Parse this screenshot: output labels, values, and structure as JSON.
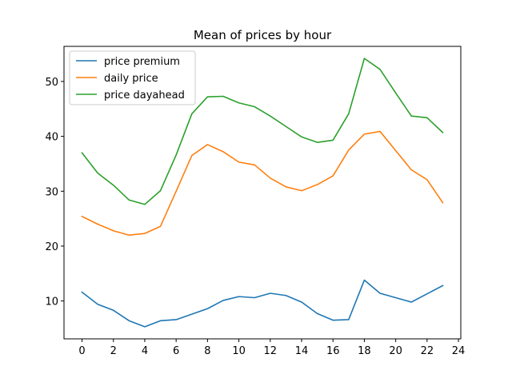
{
  "chart_data": {
    "type": "line",
    "title": "Mean of prices by hour",
    "xlabel": "",
    "ylabel": "",
    "x": [
      0,
      1,
      2,
      3,
      4,
      5,
      6,
      7,
      8,
      9,
      10,
      11,
      12,
      13,
      14,
      15,
      16,
      17,
      18,
      19,
      20,
      21,
      22,
      23
    ],
    "xlim": [
      -1.15,
      24.15
    ],
    "ylim": [
      3.1,
      56.4
    ],
    "xticks": [
      0,
      2,
      4,
      6,
      8,
      10,
      12,
      14,
      16,
      18,
      20,
      22,
      24
    ],
    "yticks": [
      10,
      20,
      30,
      40,
      50
    ],
    "grid": false,
    "legend_position": "top-left",
    "series": [
      {
        "name": "price premium",
        "color": "#1f77b4",
        "values": [
          11.6,
          9.4,
          8.3,
          6.4,
          5.3,
          6.4,
          6.6,
          7.6,
          8.6,
          10.1,
          10.8,
          10.6,
          11.4,
          11.0,
          9.8,
          7.7,
          6.5,
          6.6,
          13.8,
          11.4,
          10.6,
          9.8,
          11.3,
          12.8
        ]
      },
      {
        "name": "daily price",
        "color": "#ff7f0e",
        "values": [
          25.4,
          24.0,
          22.8,
          22.0,
          22.3,
          23.6,
          30.0,
          36.5,
          38.5,
          37.2,
          35.3,
          34.8,
          32.4,
          30.8,
          30.1,
          31.2,
          32.8,
          37.5,
          40.4,
          40.9,
          37.4,
          33.9,
          32.1,
          27.9
        ]
      },
      {
        "name": "price dayahead",
        "color": "#2ca02c",
        "values": [
          37.0,
          33.3,
          31.1,
          28.4,
          27.6,
          30.1,
          36.6,
          44.1,
          47.2,
          47.3,
          46.1,
          45.4,
          43.7,
          41.8,
          39.9,
          38.9,
          39.3,
          44.1,
          54.2,
          52.2,
          47.9,
          43.7,
          43.4,
          40.7
        ]
      }
    ]
  }
}
